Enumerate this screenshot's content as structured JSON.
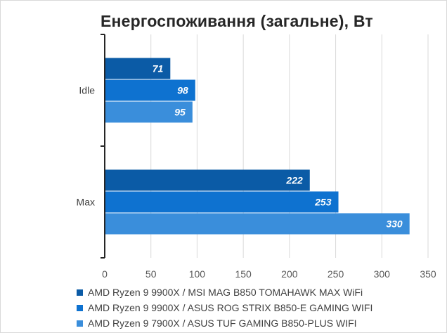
{
  "chart_data": {
    "type": "bar",
    "orientation": "horizontal",
    "title": "Енергоспоживання (загальне), Вт",
    "categories": [
      "Idle",
      "Max"
    ],
    "series": [
      {
        "name": "AMD Ryzen 9 9900X / MSI MAG B850 TOMAHAWK MAX WiFi",
        "color": "#0b5ba6",
        "values": [
          71,
          222
        ]
      },
      {
        "name": "AMD Ryzen 9 9900X / ASUS ROG STRIX B850-E GAMING WIFI",
        "color": "#0e72d0",
        "values": [
          98,
          253
        ]
      },
      {
        "name": "AMD Ryzen 9 7900X / ASUS TUF GAMING B850-PLUS WIFI",
        "color": "#3a8edb",
        "values": [
          95,
          330
        ]
      }
    ],
    "xlim": [
      0,
      350
    ],
    "xticks": [
      0,
      50,
      100,
      150,
      200,
      250,
      300,
      350
    ],
    "grid": true,
    "legend_position": "bottom"
  }
}
